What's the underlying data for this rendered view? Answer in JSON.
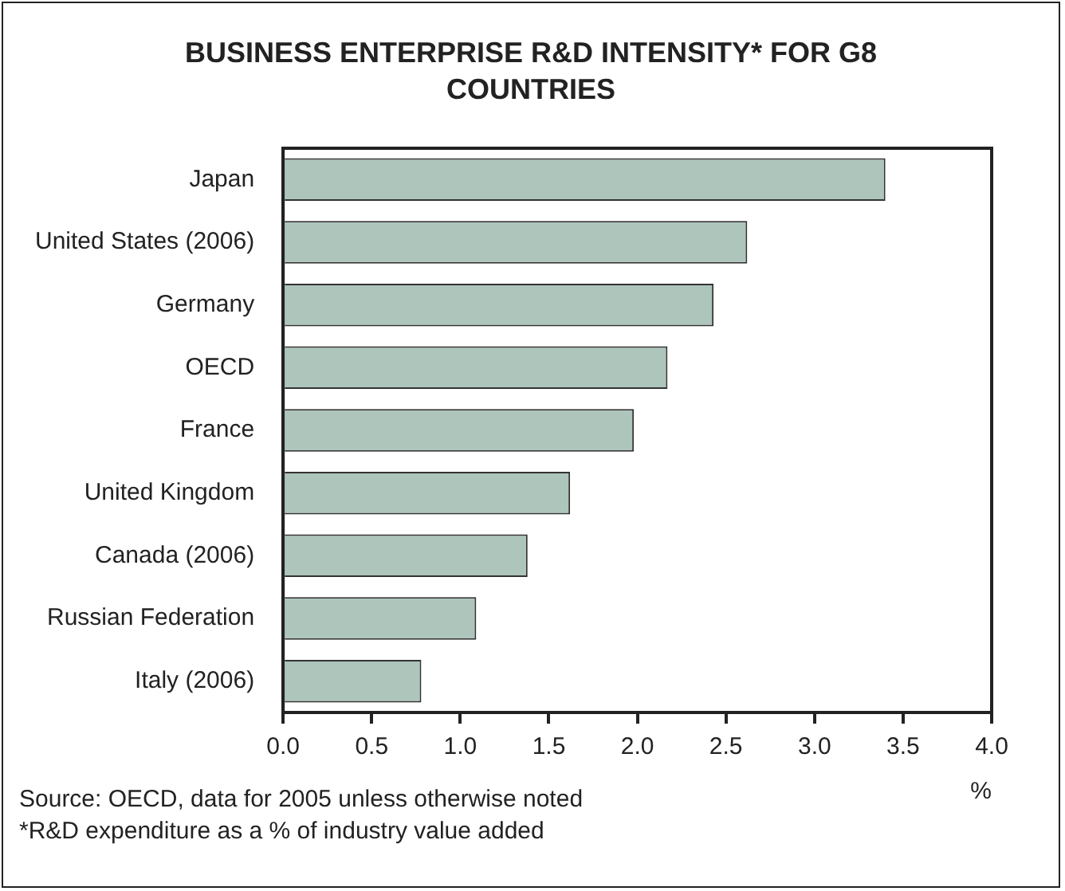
{
  "chart_data": {
    "type": "bar",
    "orientation": "horizontal",
    "title": "BUSINESS ENTERPRISE R&D INTENSITY* FOR G8 COUNTRIES",
    "xlabel": "%",
    "categories": [
      "Japan",
      "United States (2006)",
      "Germany",
      "OECD",
      "France",
      "United Kingdom",
      "Canada (2006)",
      "Russian Federation",
      "Italy (2006)"
    ],
    "values": [
      3.4,
      2.62,
      2.43,
      2.17,
      1.98,
      1.62,
      1.38,
      1.09,
      0.78
    ],
    "color": "#adc5bb",
    "xlim": [
      0,
      4
    ],
    "xticks": [
      {
        "value": 0,
        "label": "0.0"
      },
      {
        "value": 0.5,
        "label": "0.5"
      },
      {
        "value": 1,
        "label": "1.0"
      },
      {
        "value": 1.5,
        "label": "1.5"
      },
      {
        "value": 2,
        "label": "2.0"
      },
      {
        "value": 2.5,
        "label": "2.5"
      },
      {
        "value": 3,
        "label": "3.0"
      },
      {
        "value": 3.5,
        "label": "3.5"
      },
      {
        "value": 4,
        "label": "4.0"
      }
    ],
    "legend": false,
    "annotations": [
      "Source: OECD, data for 2005 unless otherwise noted",
      "*R&D expenditure as a % of industry value added"
    ]
  }
}
